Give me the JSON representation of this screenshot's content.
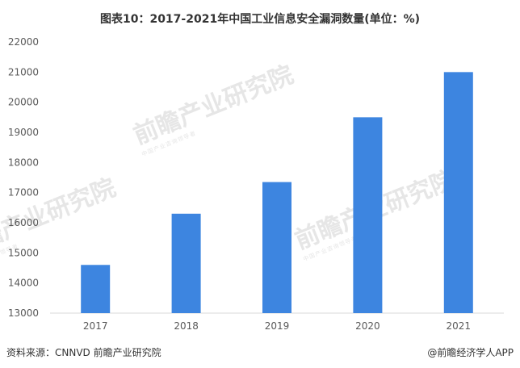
{
  "title": "图表10：2017-2021年中国工业信息安全漏洞数量(单位：%)",
  "footer": {
    "source": "资料来源：CNNVD 前瞻产业研究院",
    "credit": "@前瞻经济学人APP"
  },
  "watermark": {
    "text": "前瞻产业研究院",
    "sub": "中国产业咨询领导者"
  },
  "colors": {
    "bar": "#3d85e0",
    "axis": "#d9d9d9",
    "tick_text": "#595959"
  },
  "chart_data": {
    "type": "bar",
    "title": "图表10：2017-2021年中国工业信息安全漏洞数量(单位：%)",
    "categories": [
      "2017",
      "2018",
      "2019",
      "2020",
      "2021"
    ],
    "values": [
      14600,
      16300,
      17350,
      19500,
      21000
    ],
    "ylim": [
      13000,
      22000
    ],
    "yticks": [
      13000,
      14000,
      15000,
      16000,
      17000,
      18000,
      19000,
      20000,
      21000,
      22000
    ],
    "xlabel": "",
    "ylabel": "",
    "grid": false,
    "legend": "none"
  }
}
